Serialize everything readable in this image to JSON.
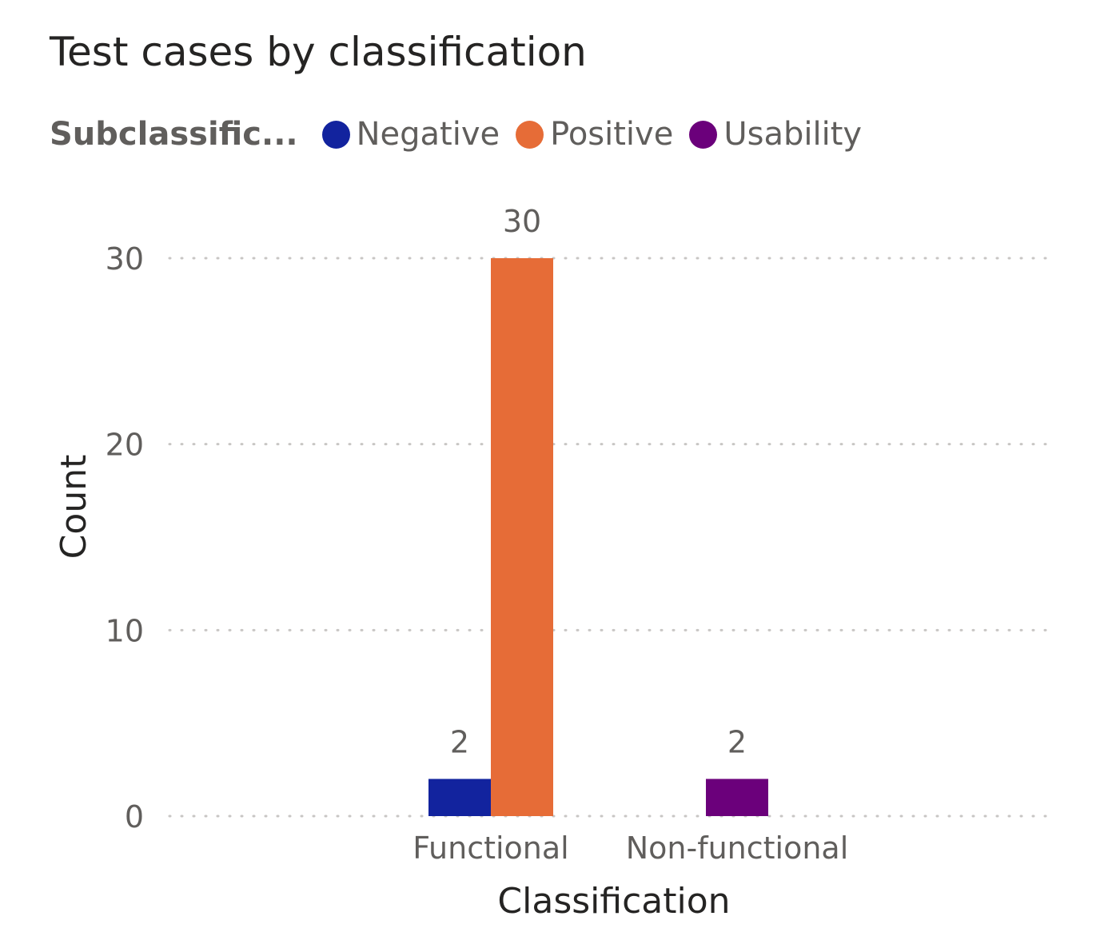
{
  "chart_data": {
    "type": "bar",
    "title": "Test cases by classification",
    "legend_title": "Subclassific...",
    "legend_position": "top-left",
    "xlabel": "Classification",
    "ylabel": "Count",
    "ylim": [
      0,
      30
    ],
    "yticks": [
      0,
      10,
      20,
      30
    ],
    "grid": true,
    "categories": [
      "Functional",
      "Non-functional"
    ],
    "series": [
      {
        "name": "Negative",
        "color": "#12239E",
        "values": [
          2,
          null
        ]
      },
      {
        "name": "Positive",
        "color": "#E66C37",
        "values": [
          30,
          null
        ]
      },
      {
        "name": "Usability",
        "color": "#6B007B",
        "values": [
          null,
          2
        ]
      }
    ]
  }
}
